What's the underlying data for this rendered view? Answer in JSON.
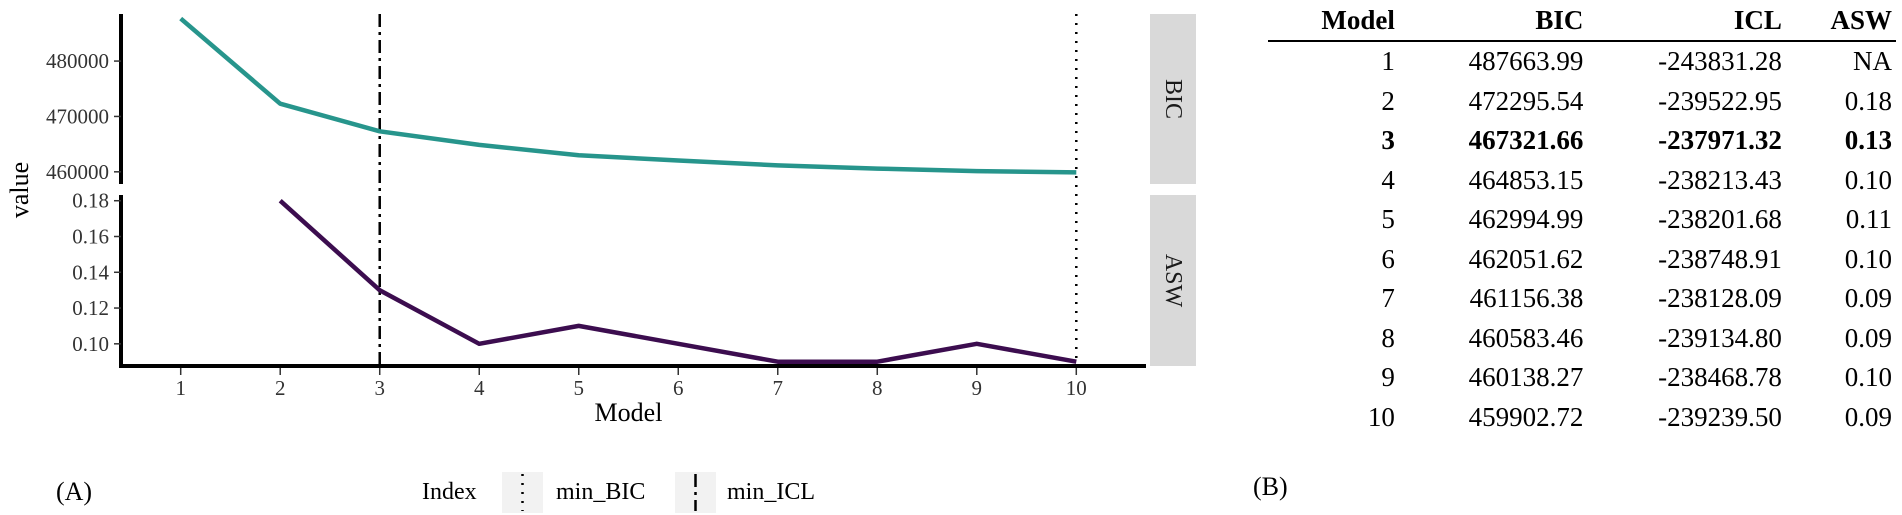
{
  "chart_data": [
    {
      "type": "line",
      "panel_label": "(A)",
      "xlabel": "Model",
      "ylabel": "value",
      "x": [
        1,
        2,
        3,
        4,
        5,
        6,
        7,
        8,
        9,
        10
      ],
      "facets": [
        {
          "strip": "BIC",
          "color": "#27958c",
          "ylim": [
            457800,
            488500
          ],
          "yticks": [
            460000,
            470000,
            480000
          ],
          "yticklabels": [
            "460000",
            "470000",
            "480000"
          ],
          "values": [
            487663.99,
            472295.54,
            467321.66,
            464853.15,
            462994.99,
            462051.62,
            461156.38,
            460583.46,
            460138.27,
            459902.72
          ]
        },
        {
          "strip": "ASW",
          "color": "#3c0d4f",
          "ylim": [
            0.0876,
            0.1832
          ],
          "yticks": [
            0.1,
            0.12,
            0.14,
            0.16,
            0.18
          ],
          "yticklabels": [
            "0.10",
            "0.12",
            "0.14",
            "0.16",
            "0.18"
          ],
          "values": [
            null,
            0.18,
            0.13,
            0.1,
            0.11,
            0.1,
            0.09,
            0.09,
            0.1,
            0.09
          ]
        }
      ],
      "vlines": [
        {
          "x": 10,
          "style": "dotted",
          "label": "min_BIC"
        },
        {
          "x": 3,
          "style": "dashdot",
          "label": "min_ICL"
        }
      ],
      "legend": {
        "title": "Index",
        "position": "bottom",
        "items": [
          "min_BIC",
          "min_ICL"
        ]
      },
      "xlim": [
        0.4,
        10.6
      ],
      "grid": false
    },
    {
      "type": "table",
      "panel_label": "(B)",
      "columns": [
        "Model",
        "BIC",
        "ICL",
        "ASW"
      ],
      "rows": [
        [
          "1",
          "487663.99",
          "-243831.28",
          "NA"
        ],
        [
          "2",
          "472295.54",
          "-239522.95",
          "0.18"
        ],
        [
          "3",
          "467321.66",
          "-237971.32",
          "0.13"
        ],
        [
          "4",
          "464853.15",
          "-238213.43",
          "0.10"
        ],
        [
          "5",
          "462994.99",
          "-238201.68",
          "0.11"
        ],
        [
          "6",
          "462051.62",
          "-238748.91",
          "0.10"
        ],
        [
          "7",
          "461156.38",
          "-238128.09",
          "0.09"
        ],
        [
          "8",
          "460583.46",
          "-239134.80",
          "0.09"
        ],
        [
          "9",
          "460138.27",
          "-238468.78",
          "0.10"
        ],
        [
          "10",
          "459902.72",
          "-239239.50",
          "0.09"
        ]
      ],
      "bold_row_index": 2
    }
  ]
}
